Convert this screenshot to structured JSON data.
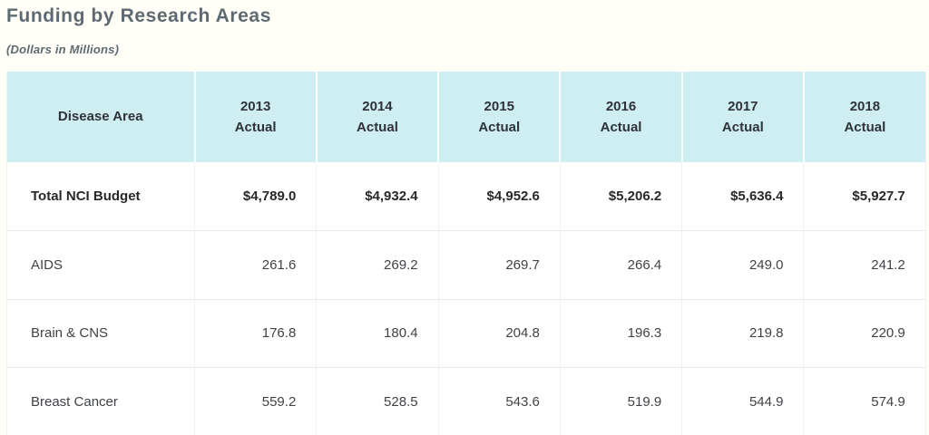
{
  "page": {
    "title": "Funding by Research Areas",
    "subtitle": "(Dollars in Millions)"
  },
  "table": {
    "columns": [
      {
        "key": "disease-area",
        "label": "Disease Area"
      },
      {
        "key": "2013-actual",
        "label": "2013\nActual"
      },
      {
        "key": "2014-actual",
        "label": "2014\nActual"
      },
      {
        "key": "2015-actual",
        "label": "2015\nActual"
      },
      {
        "key": "2016-actual",
        "label": "2016\nActual"
      },
      {
        "key": "2017-actual",
        "label": "2017\nActual"
      },
      {
        "key": "2018-actual",
        "label": "2018\nActual"
      }
    ],
    "rows": [
      {
        "area": "Total NCI Budget",
        "values": [
          "$4,789.0",
          "$4,932.4",
          "$4,952.6",
          "$5,206.2",
          "$5,636.4",
          "$5,927.7"
        ],
        "emphasis": true
      },
      {
        "area": "AIDS",
        "values": [
          "261.6",
          "269.2",
          "269.7",
          "266.4",
          "249.0",
          "241.2"
        ],
        "emphasis": false
      },
      {
        "area": "Brain & CNS",
        "values": [
          "176.8",
          "180.4",
          "204.8",
          "196.3",
          "219.8",
          "220.9"
        ],
        "emphasis": false
      },
      {
        "area": "Breast Cancer",
        "values": [
          "559.2",
          "528.5",
          "543.6",
          "519.9",
          "544.9",
          "574.9"
        ],
        "emphasis": false
      }
    ]
  },
  "colors": {
    "page_background": "#fffef7",
    "header_background": "#cfeef2",
    "header_gap": "#fafdfd",
    "row_border": "#e9e9e9",
    "column_border": "#f1f1f1",
    "title_text": "#5d6a72",
    "header_text": "#2f3338",
    "body_text": "#3f4246"
  }
}
